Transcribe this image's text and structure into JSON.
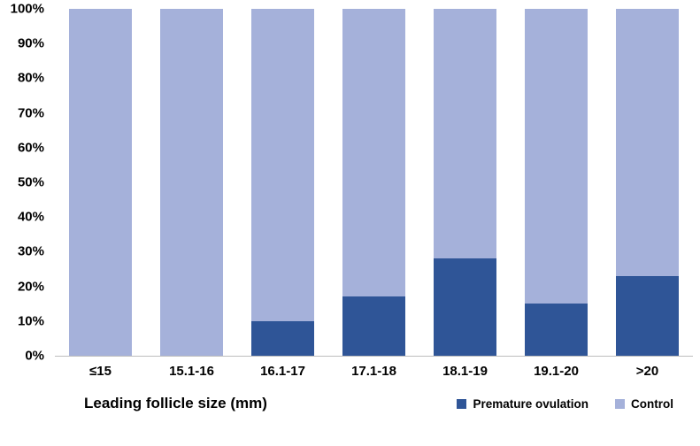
{
  "chart_data": {
    "type": "bar",
    "subtype": "stacked-100-percent",
    "title": "",
    "xlabel": "Leading follicle size (mm)",
    "ylabel": "",
    "categories": [
      "≤15",
      "15.1-16",
      "16.1-17",
      "17.1-18",
      "18.1-19",
      "19.1-20",
      ">20"
    ],
    "series": [
      {
        "name": "Premature ovulation",
        "values": [
          0,
          0,
          10,
          17,
          28,
          15,
          23
        ],
        "color": "#2F5597"
      },
      {
        "name": "Control",
        "values": [
          100,
          100,
          90,
          83,
          72,
          85,
          77
        ],
        "color": "#A5B1DA"
      }
    ],
    "y_ticks": [
      "0%",
      "10%",
      "20%",
      "30%",
      "40%",
      "50%",
      "60%",
      "70%",
      "80%",
      "90%",
      "100%"
    ],
    "ylim": [
      0,
      100
    ],
    "grid": false,
    "legend_position": "bottom-right"
  }
}
